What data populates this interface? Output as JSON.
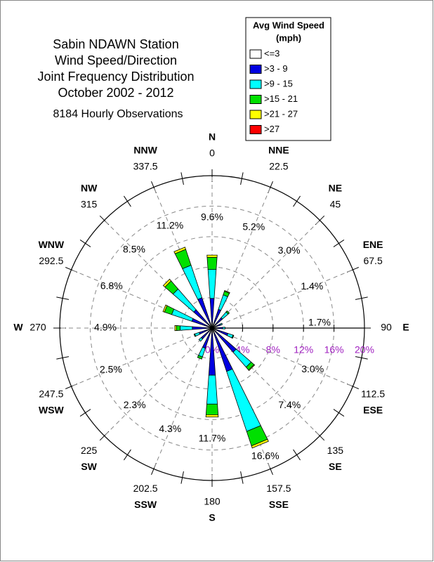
{
  "chart_data": {
    "type": "wind_rose",
    "title": [
      "Sabin NDAWN Station",
      "Wind Speed/Direction",
      "Joint Frequency Distribution",
      "October 2002 - 2012"
    ],
    "subtitle": "8184 Hourly Observations",
    "legend_title": [
      "Avg Wind Speed",
      "(mph)"
    ],
    "categories": [
      "N",
      "NNE",
      "NE",
      "ENE",
      "E",
      "ESE",
      "SE",
      "SSE",
      "S",
      "SSW",
      "SW",
      "WSW",
      "W",
      "WNW",
      "NW",
      "NNW"
    ],
    "angles": [
      0,
      22.5,
      45,
      67.5,
      90,
      112.5,
      135,
      157.5,
      180,
      202.5,
      225,
      247.5,
      270,
      292.5,
      315,
      337.5
    ],
    "totals": {
      "values": [
        9.6,
        5.2,
        3.0,
        1.4,
        1.7,
        3.0,
        7.4,
        16.6,
        11.7,
        4.3,
        2.3,
        2.5,
        4.9,
        6.8,
        8.5,
        11.2
      ],
      "value_labels": [
        "9.6%",
        "5.2%",
        "3.0%",
        "1.4%",
        "1.7%",
        "3.0%",
        "7.4%",
        "16.6%",
        "11.7%",
        "4.3%",
        "2.3%",
        "2.5%",
        "4.9%",
        "6.8%",
        "8.5%",
        "11.2%"
      ]
    },
    "series": [
      {
        "name": "<=3",
        "color": "#ffffff",
        "values": [
          0.2,
          0.2,
          0.2,
          0.2,
          0.2,
          0.2,
          0.2,
          0.2,
          0.2,
          0.2,
          0.2,
          0.2,
          0.2,
          0.2,
          0.2,
          0.2
        ]
      },
      {
        "name": ">3 - 9",
        "color": "#0000e0",
        "values": [
          3.7,
          2.4,
          1.6,
          1.0,
          1.2,
          2.0,
          4.0,
          5.8,
          6.0,
          2.6,
          1.7,
          1.6,
          2.4,
          2.6,
          3.0,
          4.0
        ]
      },
      {
        "name": ">9 - 15",
        "color": "#00ffff",
        "values": [
          3.8,
          2.0,
          1.0,
          0.2,
          0.3,
          0.7,
          2.6,
          8.3,
          3.8,
          1.2,
          0.4,
          0.6,
          1.6,
          2.8,
          3.6,
          4.5
        ]
      },
      {
        "name": ">15 - 21",
        "color": "#00e000",
        "values": [
          1.6,
          0.5,
          0.2,
          0,
          0,
          0.1,
          0.5,
          2.0,
          1.4,
          0.3,
          0,
          0.1,
          0.5,
          1.0,
          1.4,
          2.2
        ]
      },
      {
        "name": ">21 - 27",
        "color": "#ffff00",
        "values": [
          0.3,
          0.1,
          0,
          0,
          0,
          0,
          0.1,
          0.3,
          0.3,
          0,
          0,
          0,
          0.2,
          0.2,
          0.3,
          0.3
        ]
      },
      {
        "name": ">27",
        "color": "#ff0000",
        "values": [
          0,
          0,
          0,
          0,
          0,
          0,
          0,
          0,
          0,
          0,
          0,
          0,
          0,
          0,
          0,
          0
        ]
      }
    ],
    "rlim": [
      0,
      20
    ],
    "rticks": [
      {
        "value": 0,
        "label": "0%"
      },
      {
        "value": 4,
        "label": "4%"
      },
      {
        "value": 8,
        "label": "8%"
      },
      {
        "value": 12,
        "label": "12%"
      },
      {
        "value": 16,
        "label": "16%"
      },
      {
        "value": 20,
        "label": "20%"
      }
    ],
    "grid": true
  }
}
